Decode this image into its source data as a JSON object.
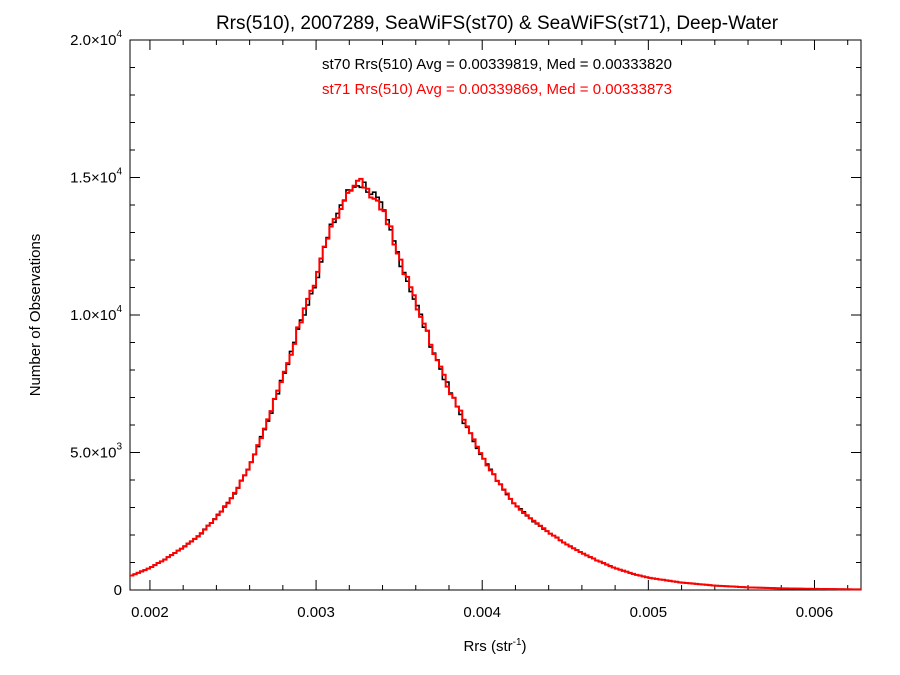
{
  "chart_data": {
    "type": "line",
    "title": "Rrs(510), 2007289, SeaWiFS(st70) & SeaWiFS(st71), Deep-Water",
    "xlabel": {
      "base": "Rrs (str",
      "exp": "-1",
      "close": ")"
    },
    "ylabel": "Number of Observations",
    "xlim": [
      0.00188,
      0.00628
    ],
    "ylim": [
      0,
      20000
    ],
    "x_ticks": [
      {
        "value": 0.002,
        "label": "0.002"
      },
      {
        "value": 0.003,
        "label": "0.003"
      },
      {
        "value": 0.004,
        "label": "0.004"
      },
      {
        "value": 0.005,
        "label": "0.005"
      },
      {
        "value": 0.006,
        "label": "0.006"
      }
    ],
    "y_ticks": [
      {
        "value": 0,
        "mantissa": "0",
        "exp": ""
      },
      {
        "value": 5000,
        "mantissa": "5.0×10",
        "exp": "3"
      },
      {
        "value": 10000,
        "mantissa": "1.0×10",
        "exp": "4"
      },
      {
        "value": 15000,
        "mantissa": "1.5×10",
        "exp": "4"
      },
      {
        "value": 20000,
        "mantissa": "2.0×10",
        "exp": "4"
      }
    ],
    "annotations": [
      {
        "text": "st70 Rrs(510) Avg = 0.00339819, Med = 0.00333820",
        "color": "#000000"
      },
      {
        "text": "st71 Rrs(510) Avg = 0.00339869, Med = 0.00333873",
        "color": "#ff0000"
      }
    ],
    "series": [
      {
        "color": "#000000",
        "x": [
          0.00188,
          0.002,
          0.0021,
          0.0022,
          0.0023,
          0.0024,
          0.0025,
          0.0026,
          0.0027,
          0.0028,
          0.0029,
          0.003,
          0.00305,
          0.0031,
          0.00315,
          0.0032,
          0.00325,
          0.0033,
          0.00335,
          0.0034,
          0.00345,
          0.0035,
          0.0036,
          0.0037,
          0.0038,
          0.0039,
          0.004,
          0.0041,
          0.0042,
          0.0043,
          0.0044,
          0.0045,
          0.0046,
          0.0047,
          0.0048,
          0.0049,
          0.005,
          0.0052,
          0.0054,
          0.0056,
          0.0058,
          0.006,
          0.00628
        ],
        "y": [
          500,
          800,
          1150,
          1550,
          2000,
          2650,
          3400,
          4500,
          6000,
          7700,
          9600,
          11300,
          12400,
          13300,
          14000,
          14500,
          14800,
          14700,
          14350,
          13800,
          13000,
          12100,
          10450,
          8800,
          7300,
          6000,
          4850,
          3900,
          3100,
          2550,
          2100,
          1700,
          1350,
          1050,
          800,
          600,
          450,
          270,
          160,
          95,
          60,
          40,
          20
        ]
      },
      {
        "color": "#ff0000",
        "x": [
          0.00188,
          0.002,
          0.0021,
          0.0022,
          0.0023,
          0.0024,
          0.0025,
          0.0026,
          0.0027,
          0.0028,
          0.0029,
          0.003,
          0.00305,
          0.0031,
          0.00315,
          0.0032,
          0.00325,
          0.0033,
          0.00335,
          0.0034,
          0.00345,
          0.0035,
          0.0036,
          0.0037,
          0.0038,
          0.0039,
          0.004,
          0.0041,
          0.0042,
          0.0043,
          0.0044,
          0.0045,
          0.0046,
          0.0047,
          0.0048,
          0.0049,
          0.005,
          0.0052,
          0.0054,
          0.0056,
          0.0058,
          0.006,
          0.00628
        ],
        "y": [
          500,
          800,
          1150,
          1550,
          2000,
          2650,
          3400,
          4500,
          6000,
          7700,
          9600,
          11300,
          12400,
          13300,
          14000,
          14500,
          14850,
          14700,
          14350,
          13850,
          13050,
          12150,
          10500,
          8850,
          7350,
          6050,
          4850,
          3900,
          3100,
          2550,
          2100,
          1700,
          1350,
          1050,
          800,
          600,
          450,
          270,
          160,
          95,
          60,
          40,
          20
        ]
      }
    ]
  }
}
